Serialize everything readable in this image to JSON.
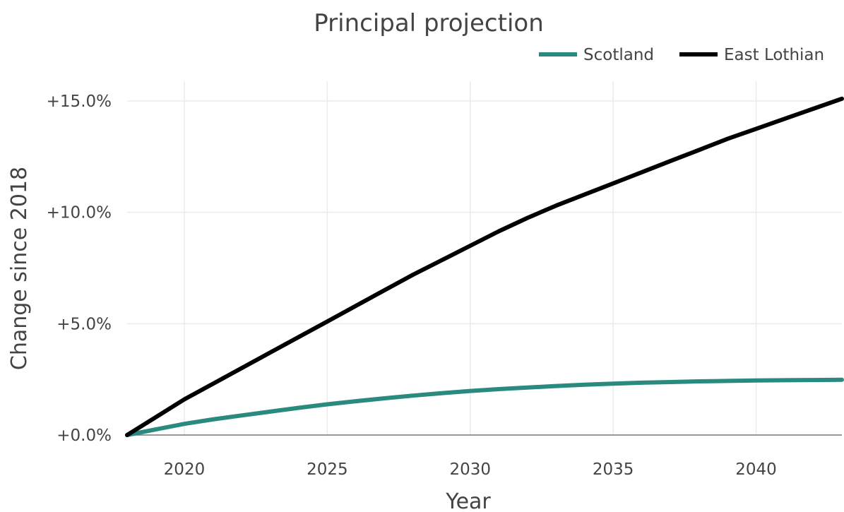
{
  "chart_data": {
    "type": "line",
    "title": "Principal projection",
    "xlabel": "Year",
    "ylabel": "Change since 2018",
    "xlim": [
      2018,
      2043
    ],
    "ylim": [
      0,
      15
    ],
    "x_ticks": [
      2020,
      2025,
      2030,
      2035,
      2040
    ],
    "x_tick_labels": [
      "2020",
      "2025",
      "2030",
      "2035",
      "2040"
    ],
    "y_ticks": [
      0,
      5,
      10,
      15
    ],
    "y_tick_labels": [
      "+0.0%",
      "+5.0%",
      "+10.0%",
      "+15.0%"
    ],
    "grid": true,
    "legend_position": "top-right",
    "x": [
      2018,
      2019,
      2020,
      2021,
      2022,
      2023,
      2024,
      2025,
      2026,
      2027,
      2028,
      2029,
      2030,
      2031,
      2032,
      2033,
      2034,
      2035,
      2036,
      2037,
      2038,
      2039,
      2040,
      2041,
      2042,
      2043
    ],
    "series": [
      {
        "name": "Scotland",
        "color": "#2a8a7e",
        "values": [
          0.0,
          0.25,
          0.5,
          0.7,
          0.88,
          1.05,
          1.22,
          1.38,
          1.52,
          1.65,
          1.77,
          1.88,
          1.98,
          2.06,
          2.13,
          2.2,
          2.26,
          2.31,
          2.35,
          2.38,
          2.41,
          2.43,
          2.45,
          2.46,
          2.47,
          2.48
        ]
      },
      {
        "name": "East Lothian",
        "color": "#000000",
        "values": [
          0.0,
          0.8,
          1.6,
          2.3,
          3.0,
          3.7,
          4.4,
          5.1,
          5.8,
          6.5,
          7.2,
          7.85,
          8.5,
          9.15,
          9.75,
          10.3,
          10.8,
          11.3,
          11.8,
          12.3,
          12.8,
          13.3,
          13.75,
          14.2,
          14.65,
          15.1
        ]
      }
    ]
  }
}
